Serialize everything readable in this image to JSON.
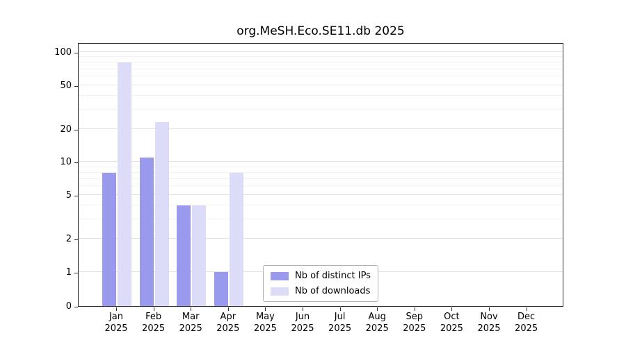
{
  "title": "org.MeSH.Eco.SE11.db 2025",
  "chart_data": {
    "type": "bar",
    "title": "org.MeSH.Eco.SE11.db 2025",
    "categories": [
      "Jan",
      "Feb",
      "Mar",
      "Apr",
      "May",
      "Jun",
      "Jul",
      "Aug",
      "Sep",
      "Oct",
      "Nov",
      "Dec"
    ],
    "year": "2025",
    "series": [
      {
        "name": "Nb of distinct IPs",
        "color": "#9999ee",
        "values": [
          8,
          11,
          4,
          1,
          0,
          0,
          0,
          0,
          0,
          0,
          0,
          0
        ]
      },
      {
        "name": "Nb of downloads",
        "color": "#dcdcf8",
        "values": [
          80,
          23,
          4,
          8,
          0,
          0,
          0,
          0,
          0,
          0,
          0,
          0
        ]
      }
    ],
    "yticks": [
      0,
      1,
      2,
      5,
      10,
      20,
      50,
      100
    ],
    "minor_gridlines": [
      3,
      4,
      6,
      7,
      8,
      9,
      30,
      40,
      60,
      70,
      80,
      90
    ],
    "ylim": [
      0,
      100
    ],
    "yscale": "symlog",
    "grid": "horizontal",
    "legend_position": "inside-bottom-center",
    "colors": {
      "axis": "#2b2b2b",
      "major_grid": "#e2e2e2",
      "minor_grid": "#f2f2f2"
    }
  }
}
